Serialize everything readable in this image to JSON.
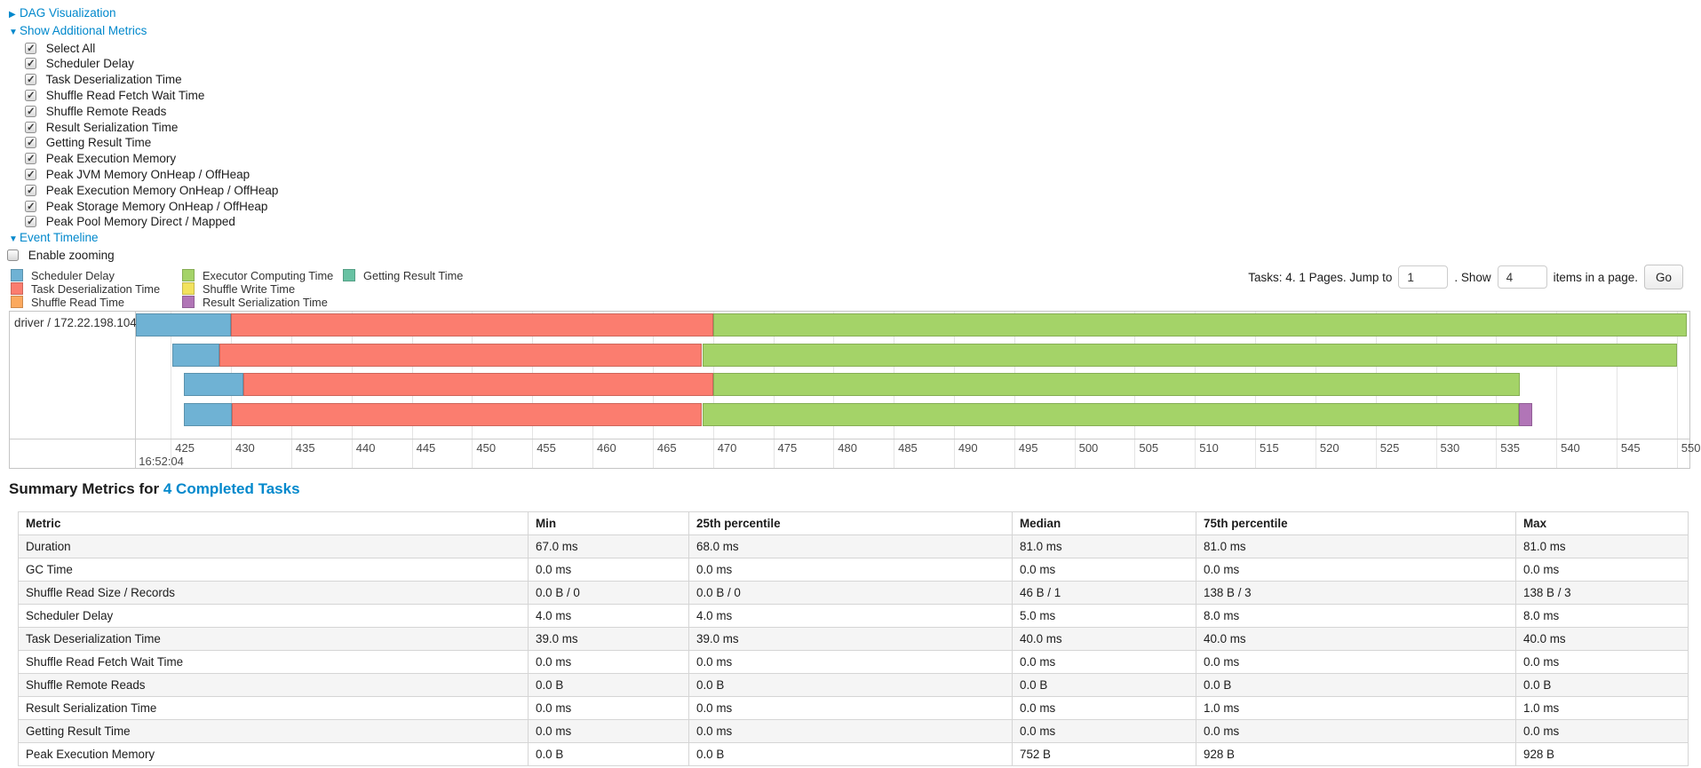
{
  "top": {
    "dag_label": "DAG Visualization",
    "dag_arrow": "▶",
    "metrics_label": "Show Additional Metrics",
    "metrics_arrow": "▼",
    "metric_checkboxes": [
      {
        "label": "Select All",
        "checked": true
      },
      {
        "label": "Scheduler Delay",
        "checked": true
      },
      {
        "label": "Task Deserialization Time",
        "checked": true
      },
      {
        "label": "Shuffle Read Fetch Wait Time",
        "checked": true
      },
      {
        "label": "Shuffle Remote Reads",
        "checked": true
      },
      {
        "label": "Result Serialization Time",
        "checked": true
      },
      {
        "label": "Getting Result Time",
        "checked": true
      },
      {
        "label": "Peak Execution Memory",
        "checked": true
      },
      {
        "label": "Peak JVM Memory OnHeap / OffHeap",
        "checked": true
      },
      {
        "label": "Peak Execution Memory OnHeap / OffHeap",
        "checked": true
      },
      {
        "label": "Peak Storage Memory OnHeap / OffHeap",
        "checked": true
      },
      {
        "label": "Peak Pool Memory Direct / Mapped",
        "checked": true
      }
    ],
    "event_timeline_label": "Event Timeline",
    "event_timeline_arrow": "▼",
    "enable_zooming": {
      "label": "Enable zooming",
      "checked": false
    }
  },
  "colors": {
    "scheduler_delay": "#6fb2d4",
    "task_deserialization": "#fb7d6f",
    "shuffle_read": "#fba95e",
    "executor_computing": "#a4d368",
    "shuffle_write": "#f2e25d",
    "result_serialization": "#b175b7",
    "getting_result": "#68c2a3",
    "link_blue": "#0088cc"
  },
  "legend": [
    {
      "key": "scheduler_delay",
      "label": "Scheduler Delay"
    },
    {
      "key": "task_deserialization",
      "label": "Task Deserialization Time"
    },
    {
      "key": "shuffle_read",
      "label": "Shuffle Read Time"
    },
    {
      "key": "executor_computing",
      "label": "Executor Computing Time"
    },
    {
      "key": "shuffle_write",
      "label": "Shuffle Write Time"
    },
    {
      "key": "result_serialization",
      "label": "Result Serialization Time"
    },
    {
      "key": "getting_result",
      "label": "Getting Result Time"
    }
  ],
  "pagination": {
    "prefix": "Tasks: 4. 1 Pages. Jump to",
    "jump_value": "1",
    "mid": ". Show",
    "show_value": "4",
    "suffix": "items in a page.",
    "go_label": "Go"
  },
  "timeline": {
    "executor_label": "driver / 172.22.198.104",
    "axis": {
      "unit": "ms within second",
      "min": 422.05,
      "max": 551.05,
      "tick_step": 5,
      "ticks": [
        425,
        430,
        435,
        440,
        445,
        450,
        455,
        460,
        465,
        470,
        475,
        480,
        485,
        490,
        495,
        500,
        505,
        510,
        515,
        520,
        525,
        530,
        535,
        540,
        545,
        550
      ],
      "major_label": "16:52:04"
    },
    "tasks": [
      {
        "row": 0,
        "segments": [
          {
            "type": "scheduler_delay",
            "start": 422.07,
            "end": 430.0
          },
          {
            "type": "task_deserialization",
            "start": 430.0,
            "end": 470.0
          },
          {
            "type": "executor_computing",
            "start": 470.0,
            "end": 550.8
          }
        ]
      },
      {
        "row": 1,
        "segments": [
          {
            "type": "scheduler_delay",
            "start": 425.1,
            "end": 429.05
          },
          {
            "type": "task_deserialization",
            "start": 429.05,
            "end": 469.1
          },
          {
            "type": "executor_computing",
            "start": 469.1,
            "end": 550.0
          }
        ]
      },
      {
        "row": 2,
        "segments": [
          {
            "type": "scheduler_delay",
            "start": 426.1,
            "end": 431.0
          },
          {
            "type": "task_deserialization",
            "start": 431.0,
            "end": 470.05
          },
          {
            "type": "executor_computing",
            "start": 470.05,
            "end": 537.0
          }
        ]
      },
      {
        "row": 3,
        "segments": [
          {
            "type": "scheduler_delay",
            "start": 426.1,
            "end": 430.05
          },
          {
            "type": "task_deserialization",
            "start": 430.05,
            "end": 469.1
          },
          {
            "type": "executor_computing",
            "start": 469.1,
            "end": 536.9
          },
          {
            "type": "result_serialization",
            "start": 536.9,
            "end": 538.0
          }
        ]
      }
    ]
  },
  "summary": {
    "title_prefix": "Summary Metrics for",
    "title_link": "4 Completed Tasks",
    "columns": [
      "Metric",
      "Min",
      "25th percentile",
      "Median",
      "75th percentile",
      "Max"
    ],
    "rows": [
      [
        "Duration",
        "67.0 ms",
        "68.0 ms",
        "81.0 ms",
        "81.0 ms",
        "81.0 ms"
      ],
      [
        "GC Time",
        "0.0 ms",
        "0.0 ms",
        "0.0 ms",
        "0.0 ms",
        "0.0 ms"
      ],
      [
        "Shuffle Read Size / Records",
        "0.0 B / 0",
        "0.0 B / 0",
        "46 B / 1",
        "138 B / 3",
        "138 B / 3"
      ],
      [
        "Scheduler Delay",
        "4.0 ms",
        "4.0 ms",
        "5.0 ms",
        "8.0 ms",
        "8.0 ms"
      ],
      [
        "Task Deserialization Time",
        "39.0 ms",
        "39.0 ms",
        "40.0 ms",
        "40.0 ms",
        "40.0 ms"
      ],
      [
        "Shuffle Read Fetch Wait Time",
        "0.0 ms",
        "0.0 ms",
        "0.0 ms",
        "0.0 ms",
        "0.0 ms"
      ],
      [
        "Shuffle Remote Reads",
        "0.0 B",
        "0.0 B",
        "0.0 B",
        "0.0 B",
        "0.0 B"
      ],
      [
        "Result Serialization Time",
        "0.0 ms",
        "0.0 ms",
        "0.0 ms",
        "1.0 ms",
        "1.0 ms"
      ],
      [
        "Getting Result Time",
        "0.0 ms",
        "0.0 ms",
        "0.0 ms",
        "0.0 ms",
        "0.0 ms"
      ],
      [
        "Peak Execution Memory",
        "0.0 B",
        "0.0 B",
        "752 B",
        "928 B",
        "928 B"
      ]
    ]
  }
}
